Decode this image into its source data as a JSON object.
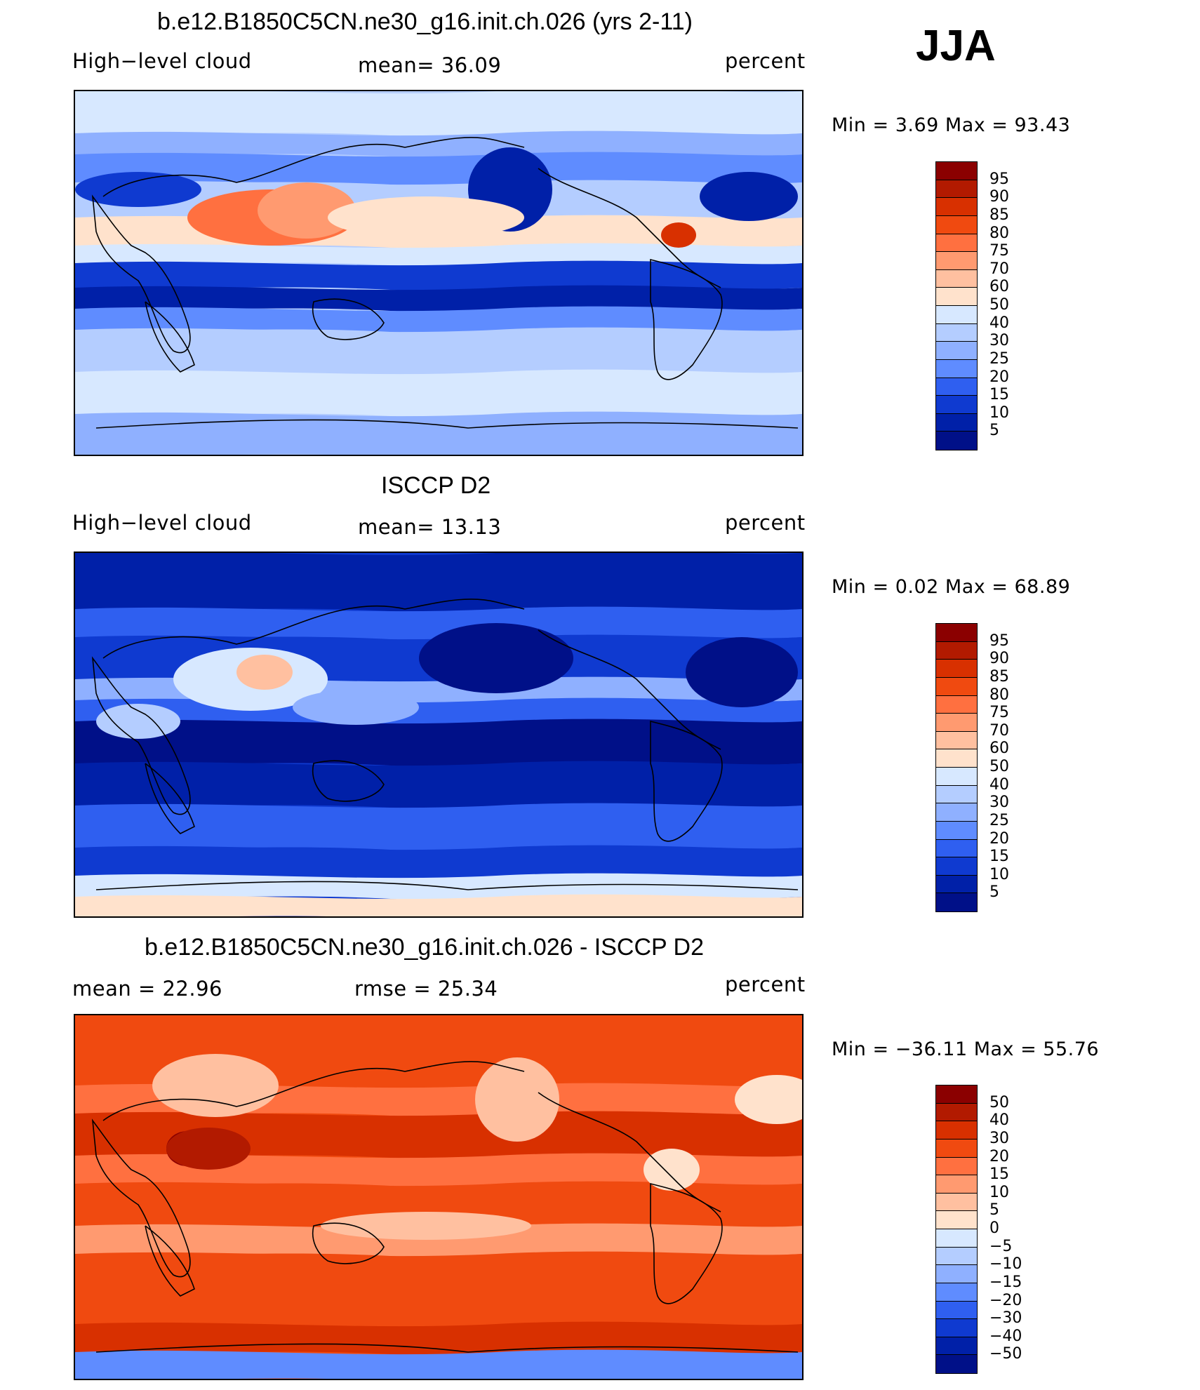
{
  "season": "JJA",
  "panels": [
    {
      "title": "b.e12.B1850C5CN.ne30_g16.init.ch.026 (yrs 2-11)",
      "left_label": "High−level cloud",
      "center_label": "mean=   36.09",
      "right_label": "percent",
      "minmax": "Min =    3.69  Max =    93.43",
      "colorbar_labels": [
        "95",
        "90",
        "85",
        "80",
        "75",
        "70",
        "60",
        "50",
        "40",
        "30",
        "25",
        "20",
        "15",
        "10",
        "5"
      ],
      "colors": [
        "#8b0000",
        "#b21a00",
        "#d83000",
        "#f04a10",
        "#ff7040",
        "#ff9a70",
        "#ffc0a0",
        "#ffe2cc",
        "#d7e8ff",
        "#b4cdff",
        "#8fb0ff",
        "#5f8cff",
        "#2f5ff0",
        "#0f3ad0",
        "#0020a8",
        "#001088"
      ],
      "map_style": "model"
    },
    {
      "title": "ISCCP D2",
      "left_label": "High−level cloud",
      "center_label": "mean=   13.13",
      "right_label": "percent",
      "minmax": "Min =    0.02  Max =    68.89",
      "colorbar_labels": [
        "95",
        "90",
        "85",
        "80",
        "75",
        "70",
        "60",
        "50",
        "40",
        "30",
        "25",
        "20",
        "15",
        "10",
        "5"
      ],
      "colors": [
        "#8b0000",
        "#b21a00",
        "#d83000",
        "#f04a10",
        "#ff7040",
        "#ff9a70",
        "#ffc0a0",
        "#ffe2cc",
        "#d7e8ff",
        "#b4cdff",
        "#8fb0ff",
        "#5f8cff",
        "#2f5ff0",
        "#0f3ad0",
        "#0020a8",
        "#001088"
      ],
      "map_style": "obs"
    },
    {
      "title": "b.e12.B1850C5CN.ne30_g16.init.ch.026 - ISCCP D2",
      "left_label": "mean =    22.96",
      "center_label": "rmse =    25.34",
      "right_label": "percent",
      "minmax": "Min = −36.11  Max =    55.76",
      "colorbar_labels": [
        "50",
        "40",
        "30",
        "20",
        "15",
        "10",
        "5",
        "0",
        "−5",
        "−10",
        "−15",
        "−20",
        "−30",
        "−40",
        "−50"
      ],
      "colors": [
        "#8b0000",
        "#b21a00",
        "#d83000",
        "#f04a10",
        "#ff7040",
        "#ff9a70",
        "#ffc0a0",
        "#ffe2cc",
        "#d7e8ff",
        "#b4cdff",
        "#8fb0ff",
        "#5f8cff",
        "#2f5ff0",
        "#0f3ad0",
        "#0020a8",
        "#001088"
      ],
      "map_style": "diff"
    }
  ]
}
